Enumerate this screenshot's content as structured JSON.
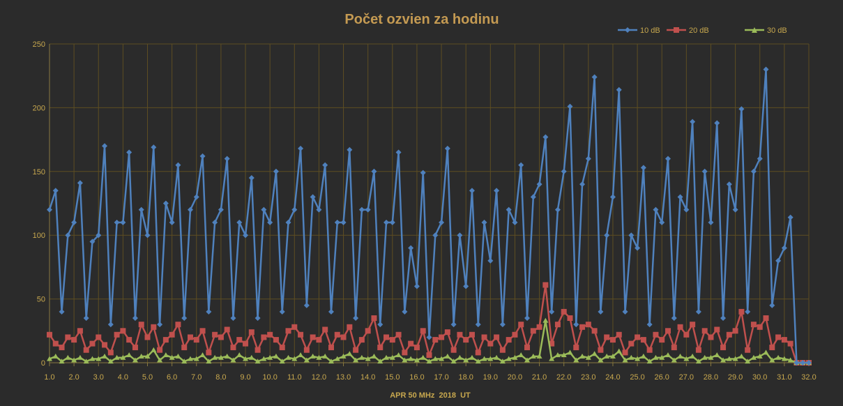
{
  "chart_data": {
    "type": "line",
    "title": "Počet ozvien za hodinu",
    "xlabel": "APR 50 MHz  2018  UT",
    "ylabel": "",
    "xlim": [
      1.0,
      32.0
    ],
    "ylim": [
      0,
      250
    ],
    "x_ticks": [
      "1.0",
      "2.0",
      "3.0",
      "4.0",
      "5.0",
      "6.0",
      "7.0",
      "8.0",
      "9.0",
      "10.0",
      "11.0",
      "12.0",
      "13.0",
      "14.0",
      "15.0",
      "16.0",
      "17.0",
      "18.0",
      "19.0",
      "20.0",
      "21.0",
      "22.0",
      "23.0",
      "24.0",
      "25.0",
      "26.0",
      "27.0",
      "28.0",
      "29.0",
      "30.0",
      "31.0",
      "32.0"
    ],
    "y_ticks": [
      "0",
      "50",
      "100",
      "150",
      "200",
      "250"
    ],
    "grid": true,
    "legend_position": "top-right",
    "x_start": 1.0,
    "x_step": 0.25,
    "series": [
      {
        "name": "10 dB",
        "color": "#4f81bd",
        "marker": "diamond",
        "values": [
          120,
          135,
          40,
          100,
          110,
          141,
          35,
          95,
          100,
          170,
          30,
          110,
          110,
          165,
          35,
          120,
          100,
          169,
          30,
          125,
          110,
          155,
          35,
          120,
          130,
          162,
          40,
          110,
          120,
          160,
          35,
          110,
          100,
          145,
          35,
          120,
          110,
          150,
          40,
          110,
          120,
          168,
          45,
          130,
          120,
          155,
          40,
          110,
          110,
          167,
          35,
          120,
          120,
          150,
          30,
          110,
          110,
          165,
          40,
          90,
          60,
          149,
          20,
          100,
          110,
          168,
          30,
          100,
          60,
          135,
          30,
          110,
          80,
          135,
          30,
          120,
          110,
          155,
          35,
          130,
          140,
          177,
          40,
          120,
          150,
          201,
          30,
          140,
          160,
          224,
          40,
          100,
          130,
          214,
          40,
          100,
          90,
          153,
          30,
          120,
          110,
          160,
          35,
          130,
          120,
          189,
          40,
          150,
          110,
          188,
          35,
          140,
          120,
          199,
          40,
          150,
          160,
          230,
          45,
          80,
          90,
          114,
          0,
          0,
          0
        ]
      },
      {
        "name": "20 dB",
        "color": "#c0504d",
        "marker": "square",
        "values": [
          22,
          15,
          12,
          20,
          18,
          25,
          10,
          15,
          20,
          14,
          8,
          22,
          25,
          18,
          12,
          30,
          20,
          28,
          10,
          18,
          22,
          30,
          12,
          20,
          18,
          25,
          8,
          22,
          20,
          26,
          12,
          18,
          15,
          24,
          10,
          20,
          22,
          18,
          12,
          25,
          28,
          22,
          10,
          20,
          18,
          26,
          12,
          22,
          20,
          28,
          10,
          18,
          25,
          35,
          12,
          20,
          18,
          22,
          8,
          15,
          12,
          25,
          6,
          18,
          20,
          24,
          10,
          22,
          18,
          22,
          8,
          20,
          15,
          20,
          10,
          18,
          22,
          30,
          12,
          25,
          28,
          61,
          15,
          30,
          40,
          35,
          12,
          28,
          30,
          25,
          10,
          20,
          18,
          22,
          8,
          15,
          20,
          18,
          10,
          22,
          18,
          25,
          12,
          28,
          22,
          30,
          10,
          25,
          20,
          26,
          12,
          22,
          25,
          40,
          10,
          30,
          28,
          35,
          12,
          20,
          18,
          15,
          0,
          0,
          0
        ]
      },
      {
        "name": "30 dB",
        "color": "#9bbb59",
        "marker": "triangle",
        "values": [
          3,
          5,
          1,
          4,
          2,
          4,
          1,
          3,
          3,
          5,
          1,
          4,
          4,
          6,
          2,
          5,
          5,
          10,
          2,
          6,
          4,
          5,
          1,
          3,
          3,
          6,
          1,
          4,
          4,
          5,
          2,
          6,
          3,
          4,
          1,
          3,
          4,
          5,
          1,
          4,
          3,
          6,
          2,
          5,
          4,
          5,
          1,
          3,
          5,
          7,
          2,
          4,
          3,
          5,
          1,
          4,
          4,
          6,
          2,
          3,
          2,
          4,
          1,
          3,
          3,
          5,
          1,
          4,
          2,
          4,
          1,
          3,
          3,
          4,
          1,
          3,
          4,
          6,
          2,
          5,
          5,
          33,
          3,
          6,
          6,
          8,
          2,
          5,
          4,
          7,
          2,
          5,
          5,
          9,
          2,
          4,
          3,
          5,
          1,
          4,
          4,
          6,
          2,
          5,
          3,
          5,
          1,
          4,
          4,
          6,
          2,
          3,
          3,
          5,
          1,
          4,
          5,
          8,
          2,
          4,
          3,
          2,
          0,
          0,
          0
        ]
      }
    ]
  }
}
